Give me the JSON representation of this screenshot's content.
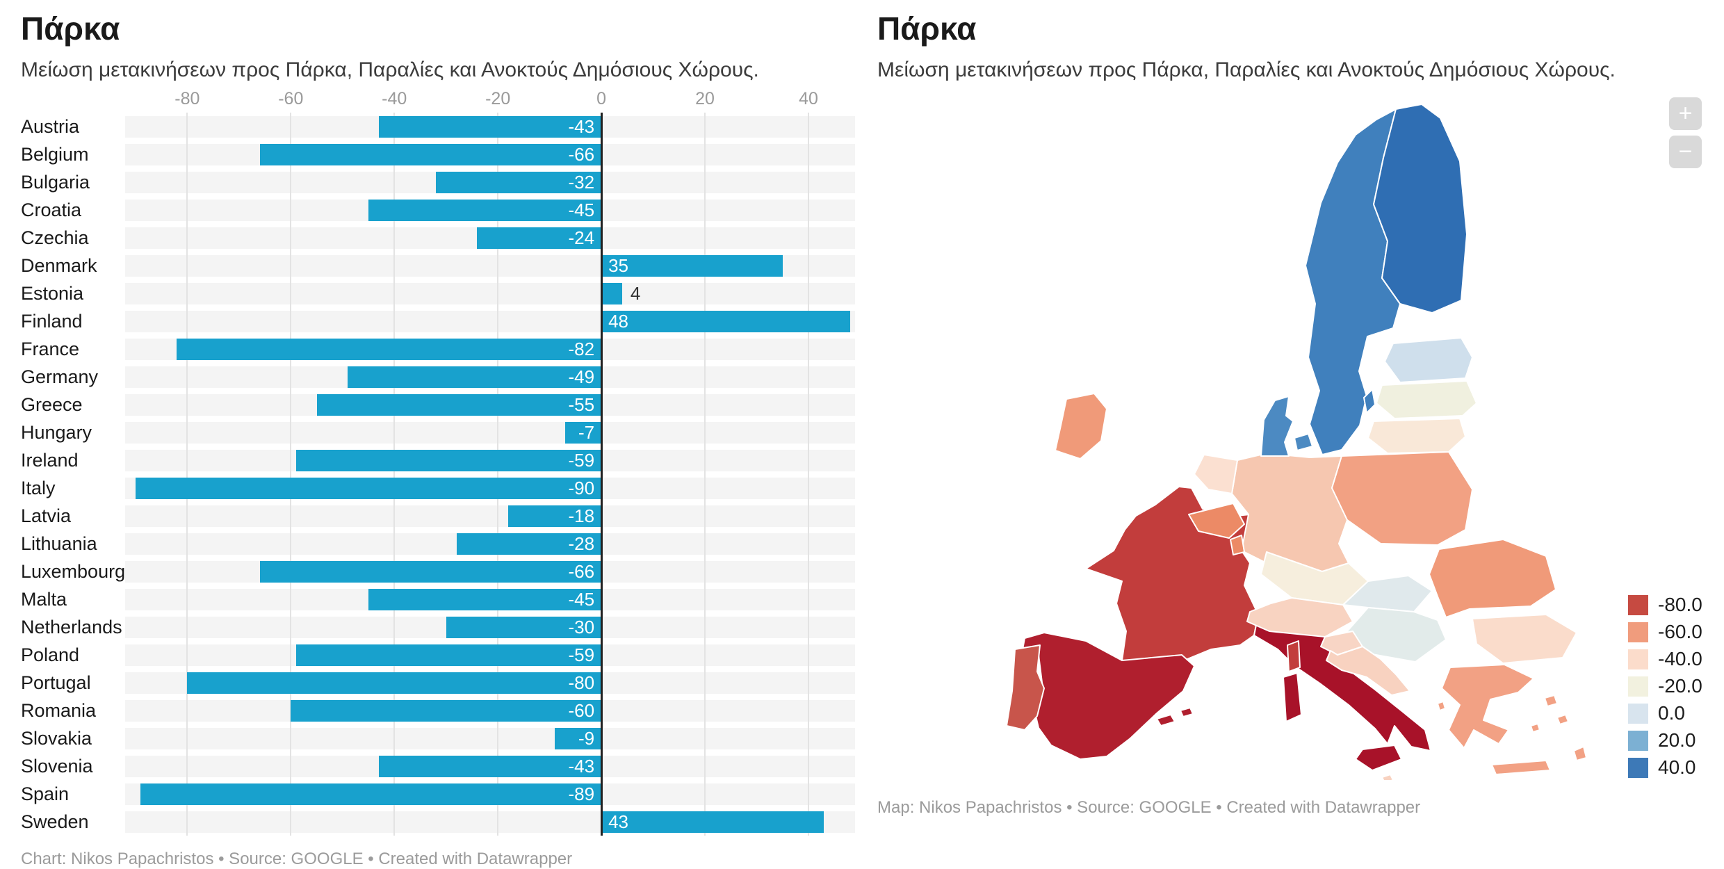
{
  "chart": {
    "title": "Πάρκα",
    "subtitle": "Μείωση μετακινήσεων προς Πάρκα, Παραλίες και Ανοκτούς Δημόσιους Χώρους.",
    "footer": "Chart: Nikos Papachristos • Source: GOOGLE • Created with Datawrapper",
    "bar_color": "#18a1cd",
    "row_bg": "#f4f4f4",
    "grid_color": "#e3e3e3",
    "zero_line_color": "#222222"
  },
  "map": {
    "title": "Πάρκα",
    "subtitle": "Μείωση μετακινήσεων προς Πάρκα, Παραλίες και Ανοκτούς Δημόσιους Χώρους.",
    "footer": "Map: Nikos Papachristos • Source: GOOGLE • Created with Datawrapper",
    "controls": {
      "zoom_in": "+",
      "zoom_out": "−"
    }
  },
  "chart_data": [
    {
      "type": "bar",
      "orientation": "horizontal",
      "title": "Πάρκα",
      "subtitle": "Μείωση μετακινήσεων προς Πάρκα, Παραλίες και Ανοκτούς Δημόσιους Χώρους.",
      "categories": [
        "Austria",
        "Belgium",
        "Bulgaria",
        "Croatia",
        "Czechia",
        "Denmark",
        "Estonia",
        "Finland",
        "France",
        "Germany",
        "Greece",
        "Hungary",
        "Ireland",
        "Italy",
        "Latvia",
        "Lithuania",
        "Luxembourg",
        "Malta",
        "Netherlands",
        "Poland",
        "Portugal",
        "Romania",
        "Slovakia",
        "Slovenia",
        "Spain",
        "Sweden"
      ],
      "values": [
        -43,
        -66,
        -32,
        -45,
        -24,
        35,
        4,
        48,
        -82,
        -49,
        -55,
        -7,
        -59,
        -90,
        -18,
        -28,
        -66,
        -45,
        -30,
        -59,
        -80,
        -60,
        -9,
        -43,
        -89,
        43
      ],
      "xlim": [
        -92,
        49
      ],
      "xticks": [
        -80,
        -60,
        -40,
        -20,
        0,
        20,
        40
      ],
      "grid": true,
      "value_labels": "inside-end, white; outside dark when bar too small",
      "footer": "Chart: Nikos Papachristos • Source: GOOGLE • Created with Datawrapper"
    },
    {
      "type": "choropleth",
      "title": "Πάρκα",
      "subtitle": "Μείωση μετακινήσεων προς Πάρκα, Παραλίες και Ανοκτούς Δημόσιους Χώρους.",
      "legend": {
        "position": "right",
        "entries": [
          {
            "label": "-80.0",
            "color": "#c64a41"
          },
          {
            "label": "-60.0",
            "color": "#f09c7d"
          },
          {
            "label": "-40.0",
            "color": "#fbdccb"
          },
          {
            "label": "-20.0",
            "color": "#f2f1df"
          },
          {
            "label": "0.0",
            "color": "#d8e4ee"
          },
          {
            "label": "20.0",
            "color": "#7cb0d3"
          },
          {
            "label": "40.0",
            "color": "#3d79b7"
          }
        ]
      },
      "regions": [
        {
          "name": "Austria",
          "value": -43,
          "color": "#f8d3c1"
        },
        {
          "name": "Belgium",
          "value": -66,
          "color": "#ec8a66"
        },
        {
          "name": "Bulgaria",
          "value": -32,
          "color": "#fadccb"
        },
        {
          "name": "Croatia",
          "value": -45,
          "color": "#f8d2c0"
        },
        {
          "name": "Czechia",
          "value": -24,
          "color": "#f6eedd"
        },
        {
          "name": "Denmark",
          "value": 35,
          "color": "#4c8ac2"
        },
        {
          "name": "Estonia",
          "value": 4,
          "color": "#cfdfec"
        },
        {
          "name": "Finland",
          "value": 48,
          "color": "#2f6eb3"
        },
        {
          "name": "France",
          "value": -82,
          "color": "#c23d3c"
        },
        {
          "name": "Germany",
          "value": -49,
          "color": "#f6c7b0"
        },
        {
          "name": "Greece",
          "value": -55,
          "color": "#f2a184"
        },
        {
          "name": "Hungary",
          "value": -7,
          "color": "#e2ebea"
        },
        {
          "name": "Ireland",
          "value": -59,
          "color": "#f09a79"
        },
        {
          "name": "Italy",
          "value": -90,
          "color": "#a81229"
        },
        {
          "name": "Latvia",
          "value": -18,
          "color": "#f0f0df"
        },
        {
          "name": "Lithuania",
          "value": -28,
          "color": "#f9e8d8"
        },
        {
          "name": "Luxembourg",
          "value": -66,
          "color": "#ec8a66"
        },
        {
          "name": "Malta",
          "value": -45,
          "color": "#f8d2c0"
        },
        {
          "name": "Netherlands",
          "value": -30,
          "color": "#fbe0d1"
        },
        {
          "name": "Poland",
          "value": -59,
          "color": "#f2a183"
        },
        {
          "name": "Portugal",
          "value": -80,
          "color": "#c8554b"
        },
        {
          "name": "Romania",
          "value": -60,
          "color": "#f09a79"
        },
        {
          "name": "Slovakia",
          "value": -9,
          "color": "#e0e9ec"
        },
        {
          "name": "Slovenia",
          "value": -43,
          "color": "#f8d5c5"
        },
        {
          "name": "Spain",
          "value": -89,
          "color": "#b01f2e"
        },
        {
          "name": "Sweden",
          "value": 43,
          "color": "#4080bd"
        }
      ],
      "footer": "Map: Nikos Papachristos • Source: GOOGLE • Created with Datawrapper"
    }
  ]
}
